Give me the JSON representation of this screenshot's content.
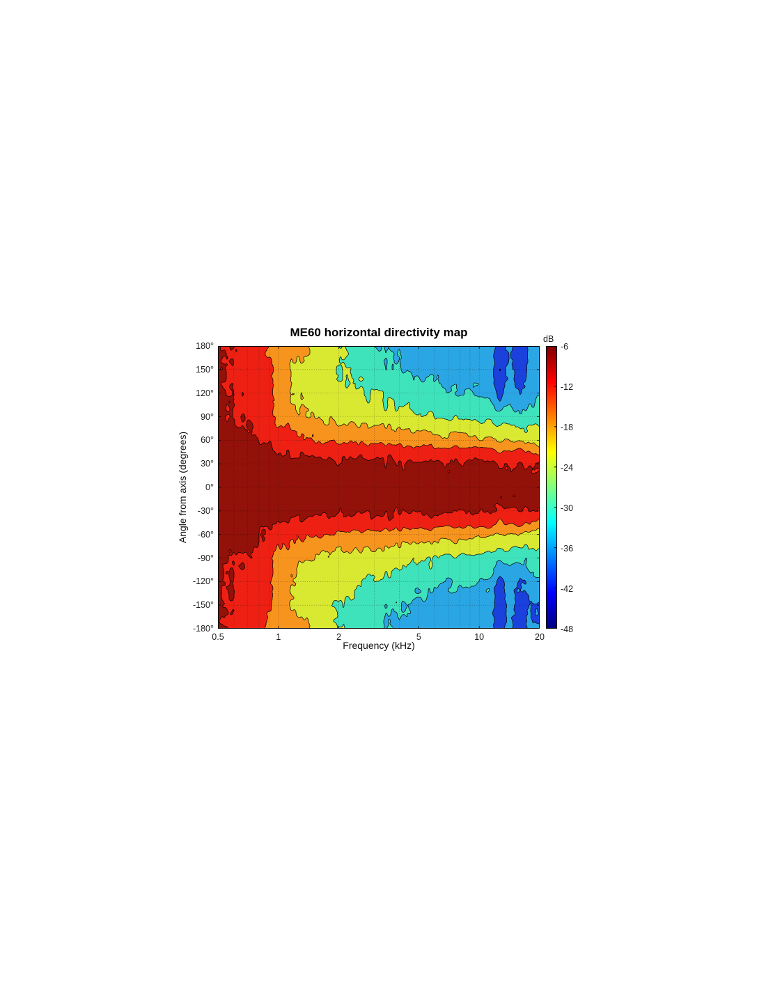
{
  "figure": {
    "background": "#ffffff"
  },
  "chart_data": {
    "type": "heatmap",
    "subtype": "filled-contour-directivity-map",
    "title": "ME60 horizontal directivity map",
    "xlabel": "Frequency (kHz)",
    "ylabel": "Angle from axis (degrees)",
    "x_scale": "log",
    "x_range_khz": [
      0.5,
      20
    ],
    "y_range_deg": [
      -180,
      180
    ],
    "grid_on": true,
    "x_ticks": [
      {
        "v": 0.5,
        "label": "0.5"
      },
      {
        "v": 1,
        "label": "1"
      },
      {
        "v": 2,
        "label": "2"
      },
      {
        "v": 5,
        "label": "5"
      },
      {
        "v": 10,
        "label": "10"
      },
      {
        "v": 20,
        "label": "20"
      }
    ],
    "y_ticks": [
      {
        "v": 180,
        "label": "180°"
      },
      {
        "v": 150,
        "label": "150°"
      },
      {
        "v": 120,
        "label": "120°"
      },
      {
        "v": 90,
        "label": "90°"
      },
      {
        "v": 60,
        "label": "60°"
      },
      {
        "v": 30,
        "label": "30°"
      },
      {
        "v": 0,
        "label": "0°"
      },
      {
        "v": -30,
        "label": "-30°"
      },
      {
        "v": -60,
        "label": "-60°"
      },
      {
        "v": -90,
        "label": "-90°"
      },
      {
        "v": -120,
        "label": "-120°"
      },
      {
        "v": -150,
        "label": "-150°"
      },
      {
        "v": -180,
        "label": "-180°"
      }
    ],
    "x_gridlines_khz": [
      0.6,
      0.7,
      0.8,
      0.9,
      1,
      2,
      3,
      4,
      5,
      6,
      7,
      8,
      9,
      10
    ],
    "y_gridlines_deg": [
      150,
      120,
      90,
      60,
      30,
      0,
      -30,
      -60,
      -90,
      -120,
      -150
    ],
    "colorbar": {
      "title": "dB",
      "max_db": -6,
      "min_db": -48,
      "ticks": [
        {
          "v": -6,
          "label": "-6"
        },
        {
          "v": -12,
          "label": "-12"
        },
        {
          "v": -18,
          "label": "-18"
        },
        {
          "v": -24,
          "label": "-24"
        },
        {
          "v": -30,
          "label": "-30"
        },
        {
          "v": -36,
          "label": "-36"
        },
        {
          "v": -42,
          "label": "-42"
        },
        {
          "v": -48,
          "label": "-48"
        }
      ]
    },
    "contour_levels_db": [
      -12,
      -18,
      -24,
      -30,
      -36,
      -42,
      -48
    ],
    "band_colors": [
      "#921109",
      "#ee2014",
      "#f7941e",
      "#d9e831",
      "#3fe3bb",
      "#2ba6e4",
      "#1b41dd",
      "#131b9e"
    ],
    "contour_line_color": "#1a1a1a",
    "grid": {
      "frequencies_khz": [
        0.5,
        0.63,
        0.79,
        1.0,
        1.26,
        1.59,
        2.0,
        2.52,
        3.17,
        4.0,
        5.04,
        6.35,
        8.0,
        10.08,
        11.31,
        12.7,
        14.25,
        16.0,
        17.96,
        20.0
      ],
      "angles_deg": [
        180,
        150,
        120,
        90,
        60,
        45,
        30,
        0,
        -30,
        -45,
        -60,
        -90,
        -120,
        -150,
        -180
      ],
      "values_db": [
        [
          -10.5,
          -10.5,
          -10.0,
          -9.5,
          -8.5,
          -7.8,
          -7.0,
          -6.5,
          -7.0,
          -7.8,
          -8.5,
          -9.5,
          -10.0,
          -10.5,
          -10.5
        ],
        [
          -13.0,
          -13.0,
          -13.0,
          -12.5,
          -10.0,
          -8.8,
          -7.5,
          -7.0,
          -7.5,
          -8.8,
          -10.0,
          -12.5,
          -13.0,
          -13.0,
          -13.0
        ],
        [
          -16.0,
          -15.5,
          -15.0,
          -14.0,
          -11.5,
          -9.8,
          -8.0,
          -7.2,
          -8.0,
          -9.8,
          -11.5,
          -14.0,
          -15.0,
          -15.5,
          -16.0
        ],
        [
          -21.5,
          -20.5,
          -20.0,
          -19.5,
          -15.0,
          -12.2,
          -9.5,
          -7.5,
          -9.5,
          -12.2,
          -15.0,
          -19.5,
          -20.0,
          -20.5,
          -21.5
        ],
        [
          -22.0,
          -26.0,
          -25.5,
          -23.0,
          -16.5,
          -13.0,
          -10.0,
          -8.0,
          -10.0,
          -13.0,
          -16.5,
          -23.0,
          -25.5,
          -26.0,
          -22.0
        ],
        [
          -27.0,
          -27.5,
          -26.5,
          -24.5,
          -17.5,
          -13.6,
          -10.3,
          -8.0,
          -10.3,
          -13.6,
          -17.5,
          -24.5,
          -26.5,
          -27.5,
          -27.0
        ],
        [
          -29.0,
          -29.5,
          -28.0,
          -25.5,
          -18.5,
          -14.0,
          -10.5,
          -8.2,
          -10.5,
          -14.0,
          -18.5,
          -25.5,
          -28.0,
          -29.5,
          -29.0
        ],
        [
          -33.0,
          -31.5,
          -29.5,
          -26.5,
          -19.5,
          -14.4,
          -10.8,
          -8.4,
          -10.8,
          -14.4,
          -19.5,
          -26.5,
          -29.5,
          -31.5,
          -33.0
        ],
        [
          -36.5,
          -34.0,
          -31.0,
          -27.5,
          -20.0,
          -14.6,
          -11.0,
          -8.6,
          -11.0,
          -14.6,
          -20.0,
          -27.5,
          -31.0,
          -34.0,
          -36.5
        ],
        [
          -37.5,
          -36.0,
          -32.5,
          -28.0,
          -20.5,
          -14.8,
          -11.0,
          -8.8,
          -11.0,
          -14.8,
          -20.5,
          -28.0,
          -32.5,
          -36.0,
          -37.5
        ],
        [
          -38.0,
          -37.0,
          -34.0,
          -29.0,
          -21.0,
          -15.0,
          -11.2,
          -9.0,
          -11.2,
          -15.0,
          -21.0,
          -29.0,
          -34.0,
          -37.0,
          -38.0
        ],
        [
          -38.5,
          -37.5,
          -35.0,
          -30.0,
          -21.5,
          -15.0,
          -11.2,
          -9.0,
          -11.2,
          -15.0,
          -21.5,
          -30.0,
          -35.0,
          -37.5,
          -38.5
        ],
        [
          -39.0,
          -38.0,
          -36.0,
          -31.0,
          -22.0,
          -15.2,
          -11.4,
          -9.2,
          -11.4,
          -15.2,
          -22.0,
          -31.0,
          -36.0,
          -38.0,
          -39.0
        ],
        [
          -39.5,
          -38.5,
          -36.5,
          -32.0,
          -23.0,
          -15.6,
          -11.6,
          -9.4,
          -11.6,
          -15.6,
          -23.0,
          -32.0,
          -36.5,
          -38.5,
          -39.5
        ],
        [
          -40.0,
          -39.0,
          -37.0,
          -32.5,
          -23.5,
          -15.4,
          -11.5,
          -9.5,
          -11.5,
          -15.4,
          -23.5,
          -32.5,
          -37.0,
          -39.0,
          -40.0
        ],
        [
          -45.0,
          -47.0,
          -44.0,
          -34.0,
          -24.0,
          -18.5,
          -12.2,
          -9.6,
          -12.2,
          -18.5,
          -24.0,
          -34.0,
          -44.0,
          -47.0,
          -45.0
        ],
        [
          -40.0,
          -40.0,
          -38.0,
          -33.0,
          -24.0,
          -17.0,
          -11.8,
          -9.7,
          -11.8,
          -17.0,
          -24.0,
          -33.0,
          -38.0,
          -40.0,
          -40.0
        ],
        [
          -44.0,
          -45.5,
          -43.0,
          -35.0,
          -25.0,
          -17.0,
          -12.5,
          -9.8,
          -12.5,
          -17.0,
          -25.0,
          -35.0,
          -43.0,
          -45.5,
          -44.0
        ],
        [
          -40.0,
          -41.0,
          -38.0,
          -34.0,
          -25.5,
          -17.5,
          -11.9,
          -10.0,
          -11.9,
          -17.5,
          -25.5,
          -34.0,
          -38.0,
          -42.5,
          -40.5
        ],
        [
          -38.0,
          -39.0,
          -37.0,
          -33.0,
          -26.0,
          -21.0,
          -12.3,
          -10.0,
          -12.3,
          -21.0,
          -26.0,
          -33.0,
          -37.0,
          -43.5,
          -41.5
        ]
      ]
    }
  }
}
